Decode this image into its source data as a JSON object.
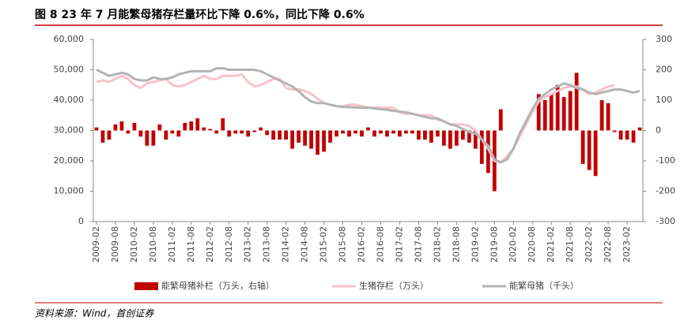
{
  "chart_data": {
    "type": "bar-line",
    "title": "图 8  23 年 7 月能繁母猪存栏量环比下降 0.6%，同比下降 0.6%",
    "source": "资料来源：Wind，首创证券",
    "categories": [
      "2009-02",
      null,
      null,
      "2009-08",
      null,
      null,
      "2010-02",
      null,
      null,
      "2010-08",
      null,
      null,
      "2011-02",
      null,
      null,
      "2011-08",
      null,
      null,
      "2012-02",
      null,
      null,
      "2012-08",
      null,
      null,
      "2013-02",
      null,
      null,
      "2013-08",
      null,
      null,
      "2014-02",
      null,
      null,
      "2014-08",
      null,
      null,
      "2015-02",
      null,
      null,
      "2015-08",
      null,
      null,
      "2016-02",
      null,
      null,
      "2016-08",
      null,
      null,
      "2017-02",
      null,
      null,
      "2017-08",
      null,
      null,
      "2018-02",
      null,
      null,
      "2018-08",
      null,
      null,
      "2019-02",
      null,
      null,
      "2019-08",
      null,
      null,
      "2020-02",
      null,
      null,
      "2020-08",
      null,
      null,
      "2021-02",
      null,
      null,
      "2021-08",
      null,
      null,
      "2022-02",
      null,
      null,
      "2022-08",
      null,
      null,
      "2023-02",
      null,
      null
    ],
    "series": [
      {
        "name": "能繁母猪补栏（万头，右轴）",
        "color": "#c00000",
        "axis": "y2",
        "kind": "bar",
        "values": [
          10,
          -40,
          -30,
          20,
          30,
          -10,
          25,
          -20,
          -50,
          -50,
          20,
          -30,
          -10,
          -20,
          25,
          30,
          40,
          10,
          5,
          -10,
          40,
          -20,
          -10,
          -10,
          -20,
          -5,
          10,
          -15,
          -30,
          -30,
          -30,
          -60,
          -40,
          -50,
          -60,
          -80,
          -70,
          -40,
          -20,
          -10,
          -20,
          -10,
          -20,
          10,
          -20,
          -10,
          -20,
          -10,
          -20,
          -10,
          -10,
          -30,
          -30,
          -40,
          -20,
          -50,
          -60,
          -50,
          -30,
          -40,
          -60,
          -110,
          -140,
          -200,
          70,
          null,
          null,
          null,
          null,
          null,
          120,
          100,
          120,
          150,
          110,
          130,
          190,
          -110,
          -130,
          -150,
          100,
          90,
          -5,
          -30,
          -30,
          -40,
          10
        ]
      },
      {
        "name": "生猪存栏（万头）",
        "color": "#f7c3cb",
        "kind": "line",
        "values": [
          46000,
          46500,
          46000,
          47000,
          48000,
          47000,
          45000,
          44000,
          45500,
          46000,
          46500,
          47000,
          45000,
          44500,
          45000,
          46000,
          47000,
          48000,
          47000,
          47000,
          48000,
          48000,
          48000,
          48500,
          46000,
          44500,
          45000,
          46000,
          47000,
          47000,
          44000,
          43500,
          43500,
          43000,
          42000,
          40500,
          39000,
          38500,
          38000,
          38000,
          38500,
          38500,
          38000,
          37500,
          37500,
          37500,
          37500,
          37500,
          36000,
          35500,
          35500,
          35000,
          35000,
          35000,
          33500,
          33000,
          32000,
          32000,
          32000,
          31500,
          30000,
          27000,
          24000,
          20000,
          19500,
          21500,
          24000,
          28000,
          32000,
          36000,
          39500,
          41000,
          42000,
          43000,
          44000,
          44500,
          44500,
          43500,
          42000,
          42500,
          43500,
          44500,
          45000,
          null,
          null,
          null,
          null
        ]
      },
      {
        "name": "能繁母猪（千头）",
        "color": "#b3b3b3",
        "kind": "line",
        "values": [
          50000,
          49000,
          48000,
          48500,
          49000,
          48500,
          47000,
          46500,
          46500,
          47500,
          47000,
          47000,
          47500,
          48500,
          49000,
          49500,
          49500,
          49500,
          49500,
          50500,
          50500,
          50000,
          50000,
          50000,
          50000,
          50000,
          49500,
          48500,
          47500,
          46500,
          45500,
          44500,
          43000,
          41000,
          39500,
          39000,
          39000,
          38500,
          38000,
          37800,
          37700,
          37600,
          37500,
          37500,
          37300,
          37000,
          36800,
          36500,
          36200,
          36000,
          35500,
          35000,
          34500,
          34000,
          34000,
          33000,
          32000,
          31500,
          30500,
          29500,
          29000,
          27000,
          25000,
          20500,
          19500,
          20500,
          24000,
          29000,
          33000,
          37000,
          40500,
          42000,
          43500,
          44500,
          45500,
          45000,
          44000,
          43500,
          42500,
          42000,
          42500,
          43000,
          43500,
          43500,
          43000,
          42500,
          43000
        ]
      }
    ],
    "ylim": [
      0,
      60000
    ],
    "yticks": [
      0,
      {
        "value": 10000,
        "label": "10,000"
      },
      {
        "value": 20000,
        "label": "20,000"
      },
      {
        "value": 30000,
        "label": "30,000"
      },
      {
        "value": 40000,
        "label": "40,000"
      },
      {
        "value": 50000,
        "label": "50,000"
      },
      {
        "value": 60000,
        "label": "60,000"
      }
    ],
    "y2lim": [
      -300,
      300
    ],
    "y2ticks": [
      -300,
      -200,
      -100,
      0,
      100,
      200,
      300
    ]
  }
}
